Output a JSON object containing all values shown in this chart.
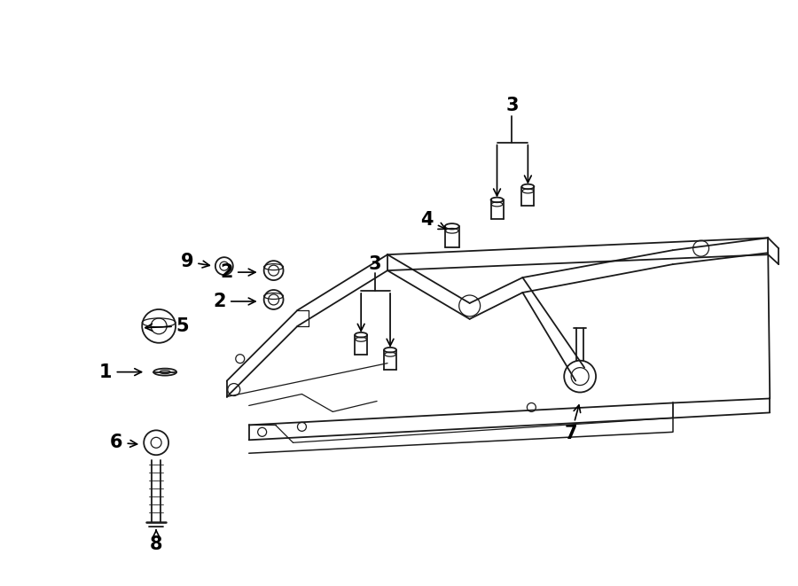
{
  "background_color": "#ffffff",
  "line_color": "#1a1a1a",
  "lw_main": 1.3,
  "lw_detail": 0.9,
  "fig_w": 9.0,
  "fig_h": 6.61,
  "dpi": 100
}
